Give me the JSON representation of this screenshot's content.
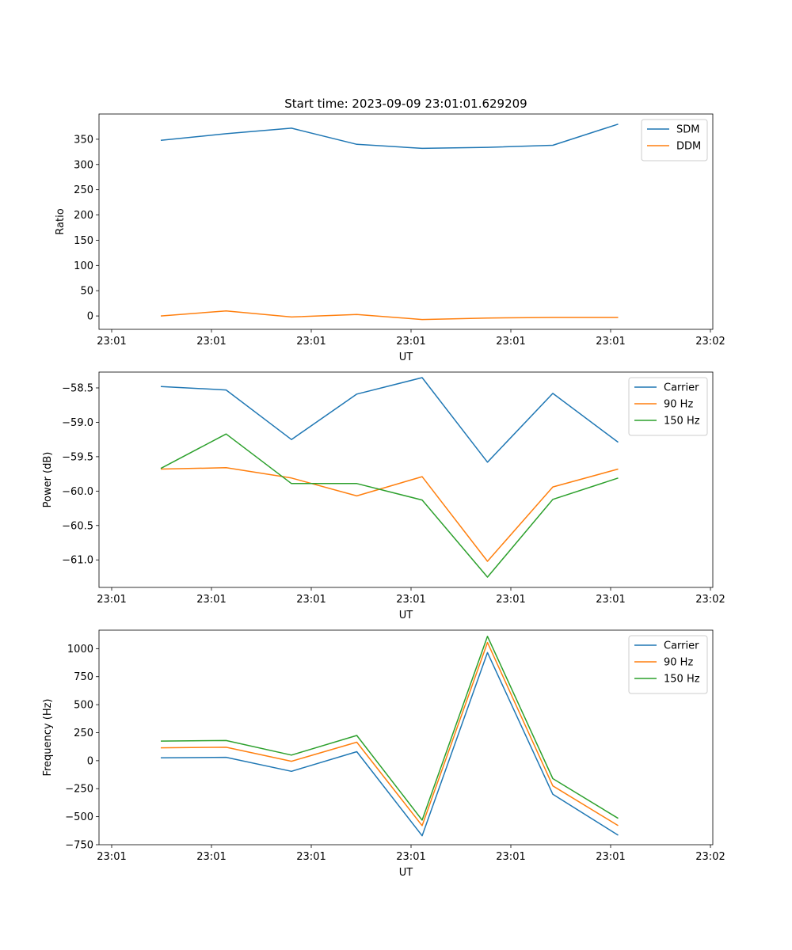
{
  "figure_title": "Start time: 2023-09-09 23:01:01.629209",
  "chart_data": [
    {
      "type": "line",
      "title": "Start time: 2023-09-09 23:01:01.629209",
      "xlabel": "UT",
      "ylabel": "Ratio",
      "x_ticks": [
        "23:01",
        "23:01",
        "23:01",
        "23:01",
        "23:01",
        "23:01",
        "23:02"
      ],
      "ylim": [
        -26.5,
        400
      ],
      "y_ticks": [
        0,
        50,
        100,
        150,
        200,
        250,
        300,
        350
      ],
      "y_tick_labels": [
        "0",
        "50",
        "100",
        "150",
        "200",
        "250",
        "300",
        "350"
      ],
      "series": [
        {
          "name": "SDM",
          "color": "#1f77b4",
          "values": [
            348,
            361,
            372,
            340,
            332,
            334,
            338,
            380
          ]
        },
        {
          "name": "DDM",
          "color": "#ff7f0e",
          "values": [
            0,
            10,
            -2,
            3,
            -7,
            -4,
            -3,
            -3
          ]
        }
      ],
      "legend": "top-right"
    },
    {
      "type": "line",
      "xlabel": "UT",
      "ylabel": "Power (dB)",
      "x_ticks": [
        "23:01",
        "23:01",
        "23:01",
        "23:01",
        "23:01",
        "23:01",
        "23:02"
      ],
      "ylim": [
        -61.4,
        -58.27
      ],
      "y_ticks": [
        -58.5,
        -59.0,
        -59.5,
        -60.0,
        -60.5,
        -61.0
      ],
      "y_tick_labels": [
        "−58.5",
        "−59.0",
        "−59.5",
        "−60.0",
        "−60.5",
        "−61.0"
      ],
      "series": [
        {
          "name": "Carrier",
          "color": "#1f77b4",
          "values": [
            -58.48,
            -58.53,
            -59.25,
            -58.59,
            -58.35,
            -59.58,
            -58.58,
            -59.29
          ]
        },
        {
          "name": "90 Hz",
          "color": "#ff7f0e",
          "values": [
            -59.68,
            -59.66,
            -59.81,
            -60.07,
            -59.79,
            -61.02,
            -59.94,
            -59.68
          ]
        },
        {
          "name": "150 Hz",
          "color": "#2ca02c",
          "values": [
            -59.67,
            -59.17,
            -59.89,
            -59.89,
            -60.13,
            -61.25,
            -60.12,
            -59.81
          ]
        }
      ],
      "legend": "top-right"
    },
    {
      "type": "line",
      "xlabel": "UT",
      "ylabel": "Frequency (Hz)",
      "x_ticks": [
        "23:01",
        "23:01",
        "23:01",
        "23:01",
        "23:01",
        "23:01",
        "23:02"
      ],
      "ylim": [
        -750,
        1165
      ],
      "y_ticks": [
        -750,
        -500,
        -250,
        0,
        250,
        500,
        750,
        1000
      ],
      "y_tick_labels": [
        "−750",
        "−500",
        "−250",
        "0",
        "250",
        "500",
        "750",
        "1000"
      ],
      "series": [
        {
          "name": "Carrier",
          "color": "#1f77b4",
          "values": [
            25,
            30,
            -95,
            80,
            -670,
            965,
            -300,
            -665
          ]
        },
        {
          "name": "90 Hz",
          "color": "#ff7f0e",
          "values": [
            115,
            120,
            -5,
            165,
            -580,
            1055,
            -225,
            -580
          ]
        },
        {
          "name": "150 Hz",
          "color": "#2ca02c",
          "values": [
            175,
            180,
            50,
            225,
            -530,
            1110,
            -160,
            -515
          ]
        }
      ],
      "legend": "top-right"
    }
  ]
}
